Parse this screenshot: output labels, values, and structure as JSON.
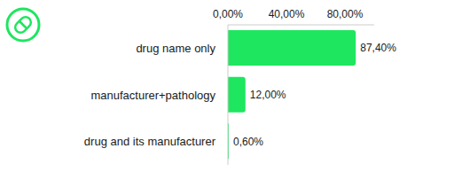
{
  "chart_data": {
    "type": "bar",
    "orientation": "horizontal",
    "categories": [
      "drug name only",
      "manufacturer+pathology",
      "drug and its manufacturer"
    ],
    "values": [
      87.4,
      12.0,
      0.6
    ],
    "value_labels": [
      "87,40%",
      "12,00%",
      "0,60%"
    ],
    "color": "#1ee65f",
    "xlim": [
      0,
      100
    ],
    "xticks": [
      {
        "value": 0,
        "label": "0,00%"
      },
      {
        "value": 40,
        "label": "40,00%"
      },
      {
        "value": 80,
        "label": "80,00%"
      }
    ],
    "data_labels": true,
    "grid": false
  }
}
